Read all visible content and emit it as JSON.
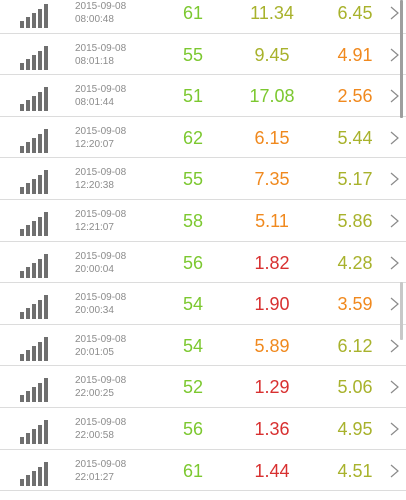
{
  "colors": {
    "green": "#7cc830",
    "olive": "#a8b22c",
    "orange": "#f0891e",
    "red": "#d83030",
    "darkgreen": "#5fb52a"
  },
  "rows": [
    {
      "date": "2015-09-08",
      "time": "08:00:48",
      "v1": "61",
      "v1c": "green",
      "v2": "11.34",
      "v2c": "olive",
      "v3": "6.45",
      "v3c": "olive"
    },
    {
      "date": "2015-09-08",
      "time": "08:01:18",
      "v1": "55",
      "v1c": "green",
      "v2": "9.45",
      "v2c": "olive",
      "v3": "4.91",
      "v3c": "orange"
    },
    {
      "date": "2015-09-08",
      "time": "08:01:44",
      "v1": "51",
      "v1c": "green",
      "v2": "17.08",
      "v2c": "green",
      "v3": "2.56",
      "v3c": "orange"
    },
    {
      "date": "2015-09-08",
      "time": "12:20:07",
      "v1": "62",
      "v1c": "green",
      "v2": "6.15",
      "v2c": "orange",
      "v3": "5.44",
      "v3c": "olive"
    },
    {
      "date": "2015-09-08",
      "time": "12:20:38",
      "v1": "55",
      "v1c": "green",
      "v2": "7.35",
      "v2c": "orange",
      "v3": "5.17",
      "v3c": "olive"
    },
    {
      "date": "2015-09-08",
      "time": "12:21:07",
      "v1": "58",
      "v1c": "green",
      "v2": "5.11",
      "v2c": "orange",
      "v3": "5.86",
      "v3c": "olive"
    },
    {
      "date": "2015-09-08",
      "time": "20:00:04",
      "v1": "56",
      "v1c": "green",
      "v2": "1.82",
      "v2c": "red",
      "v3": "4.28",
      "v3c": "olive"
    },
    {
      "date": "2015-09-08",
      "time": "20:00:34",
      "v1": "54",
      "v1c": "green",
      "v2": "1.90",
      "v2c": "red",
      "v3": "3.59",
      "v3c": "orange"
    },
    {
      "date": "2015-09-08",
      "time": "20:01:05",
      "v1": "54",
      "v1c": "green",
      "v2": "5.89",
      "v2c": "orange",
      "v3": "6.12",
      "v3c": "olive"
    },
    {
      "date": "2015-09-08",
      "time": "22:00:25",
      "v1": "52",
      "v1c": "green",
      "v2": "1.29",
      "v2c": "red",
      "v3": "5.06",
      "v3c": "olive"
    },
    {
      "date": "2015-09-08",
      "time": "22:00:58",
      "v1": "56",
      "v1c": "green",
      "v2": "1.36",
      "v2c": "red",
      "v3": "4.95",
      "v3c": "olive"
    },
    {
      "date": "2015-09-08",
      "time": "22:01:27",
      "v1": "61",
      "v1c": "green",
      "v2": "1.44",
      "v2c": "red",
      "v3": "4.51",
      "v3c": "olive"
    }
  ],
  "icons": {
    "signal": "signal-strength-icon",
    "chevron": "chevron-right-icon"
  }
}
